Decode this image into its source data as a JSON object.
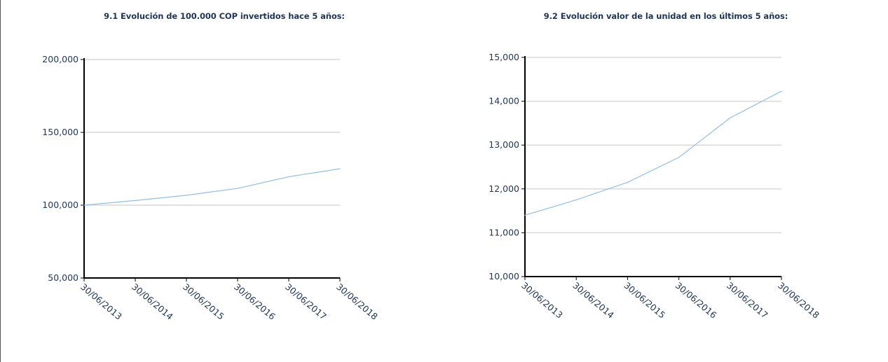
{
  "chart_data": [
    {
      "type": "line",
      "title": "9.1 Evolución de 100.000 COP invertidos hace 5 años:",
      "xlabel": "",
      "ylabel": "",
      "categories": [
        "30/06/2013",
        "30/06/2014",
        "30/06/2015",
        "30/06/2016",
        "30/06/2017",
        "30/06/2018"
      ],
      "y_ticks": [
        "50,000",
        "100,000",
        "150,000",
        "200,000"
      ],
      "ylim": [
        50000,
        200000
      ],
      "y_tick_values": [
        50000,
        100000,
        150000,
        200000
      ],
      "grid": true,
      "line_color": "#8fbfe6",
      "grid_color": "#d9d9d9",
      "series": [
        {
          "values": [
            100000,
            103200,
            106800,
            111500,
            119500,
            125000
          ]
        }
      ]
    },
    {
      "type": "line",
      "title": "9.2 Evolución valor de la unidad en los últimos 5 años:",
      "xlabel": "",
      "ylabel": "",
      "categories": [
        "30/06/2013",
        "30/06/2014",
        "30/06/2015",
        "30/06/2016",
        "30/06/2017",
        "30/06/2018"
      ],
      "y_ticks": [
        "10,000",
        "11,000",
        "12,000",
        "13,000",
        "14,000",
        "15,000"
      ],
      "ylim": [
        10000,
        15000
      ],
      "y_tick_values": [
        10000,
        11000,
        12000,
        13000,
        14000,
        15000
      ],
      "grid": true,
      "line_color": "#8fbfe6",
      "grid_color": "#d9d9d9",
      "series": [
        {
          "values": [
            11400,
            11750,
            12150,
            12720,
            13620,
            14230
          ]
        }
      ]
    }
  ]
}
